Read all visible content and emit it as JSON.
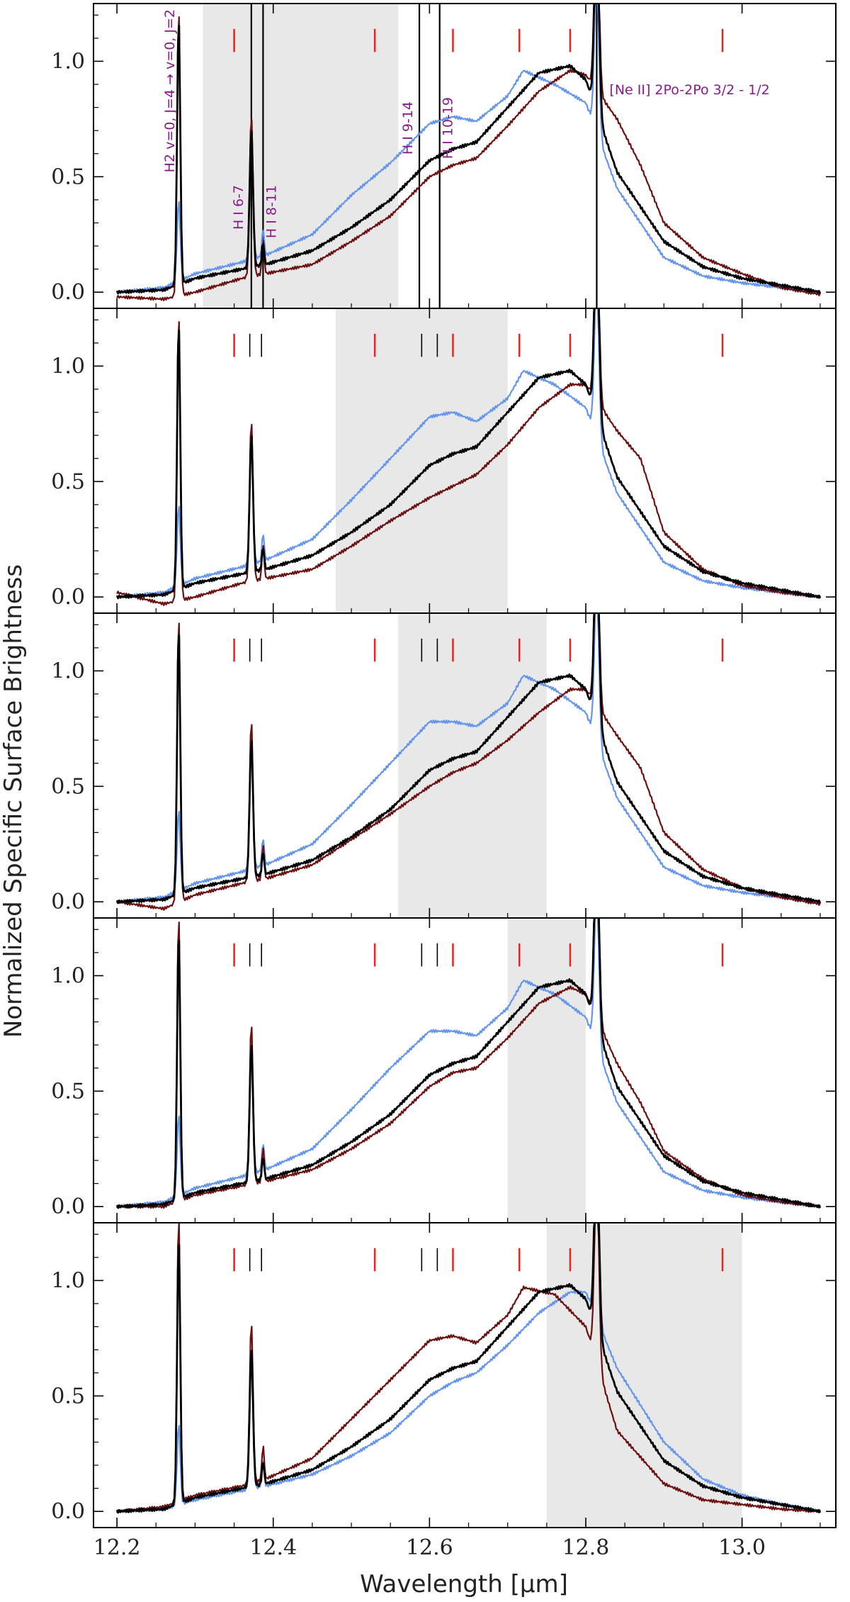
{
  "chart_data": {
    "type": "line",
    "xlabel": "Wavelength [μm]",
    "ylabel": "Normalized Specific Surface Brightness",
    "xlim": [
      12.17,
      13.12
    ],
    "ylim": [
      -0.07,
      1.25
    ],
    "xticks": [
      12.2,
      12.4,
      12.6,
      12.8,
      13.0
    ],
    "xtick_labels": [
      "12.2",
      "12.4",
      "12.6",
      "12.8",
      "13.0"
    ],
    "yticks": [
      0.0,
      0.5,
      1.0
    ],
    "ytick_labels": [
      "0.0",
      "0.5",
      "1.0"
    ],
    "colors": {
      "black": "#000000",
      "blue": "#6495ED",
      "darkred": "#6B0F0F",
      "marker_red": "#E8231C",
      "annotation": "#8A1A8A",
      "shade": "#E8E8E8"
    },
    "series_names": [
      "black",
      "blue",
      "darkred"
    ],
    "red_markers": [
      12.35,
      12.53,
      12.63,
      12.715,
      12.78,
      12.975
    ],
    "black_markers": [
      12.37,
      12.385,
      12.59,
      12.61
    ],
    "annotations": [
      {
        "label": "H2 v=0, J=4 → v=0, J=2",
        "x": 12.279
      },
      {
        "label": "H I 6-7",
        "x": 12.372
      },
      {
        "label": "H I 8-11",
        "x": 12.387
      },
      {
        "label": "H I 9-14",
        "x": 12.587
      },
      {
        "label": "H I 10-19",
        "x": 12.613
      },
      {
        "label": "[Ne II] 2Po-2Po 3/2 - 1/2",
        "x": 12.814
      }
    ],
    "panels": [
      {
        "shade": [
          12.31,
          12.56
        ],
        "series": [
          {
            "name": "black",
            "x": [
              12.2,
              12.26,
              12.3,
              12.36,
              12.39,
              12.45,
              12.5,
              12.55,
              12.6,
              12.63,
              12.66,
              12.7,
              12.74,
              12.78,
              12.8,
              12.84,
              12.9,
              12.95,
              13.0,
              13.05,
              13.1
            ],
            "y": [
              0.0,
              0.01,
              0.06,
              0.1,
              0.12,
              0.18,
              0.28,
              0.4,
              0.57,
              0.62,
              0.65,
              0.8,
              0.95,
              0.98,
              0.92,
              0.52,
              0.22,
              0.11,
              0.06,
              0.03,
              0.0
            ]
          },
          {
            "name": "blue",
            "x": [
              12.2,
              12.26,
              12.3,
              12.36,
              12.39,
              12.45,
              12.5,
              12.55,
              12.6,
              12.63,
              12.66,
              12.7,
              12.72,
              12.76,
              12.8,
              12.84,
              12.9,
              12.95,
              13.0,
              13.05,
              13.1
            ],
            "y": [
              0.0,
              0.02,
              0.08,
              0.13,
              0.16,
              0.25,
              0.42,
              0.56,
              0.73,
              0.76,
              0.74,
              0.85,
              0.96,
              0.9,
              0.82,
              0.45,
              0.15,
              0.07,
              0.04,
              0.02,
              0.0
            ]
          },
          {
            "name": "darkred",
            "x": [
              12.2,
              12.26,
              12.3,
              12.36,
              12.39,
              12.45,
              12.5,
              12.55,
              12.6,
              12.63,
              12.66,
              12.7,
              12.74,
              12.78,
              12.8,
              12.84,
              12.87,
              12.9,
              12.95,
              13.0,
              13.05,
              13.1
            ],
            "y": [
              -0.02,
              -0.03,
              0.0,
              0.06,
              0.08,
              0.12,
              0.22,
              0.33,
              0.5,
              0.55,
              0.58,
              0.72,
              0.87,
              0.96,
              0.94,
              0.75,
              0.55,
              0.3,
              0.15,
              0.08,
              0.02,
              -0.01
            ]
          }
        ]
      },
      {
        "shade": [
          12.48,
          12.7
        ],
        "series": [
          {
            "name": "black",
            "x": [
              12.2,
              12.26,
              12.3,
              12.36,
              12.39,
              12.45,
              12.5,
              12.55,
              12.6,
              12.63,
              12.66,
              12.7,
              12.74,
              12.78,
              12.8,
              12.84,
              12.9,
              12.95,
              13.0,
              13.05,
              13.1
            ],
            "y": [
              0.0,
              0.01,
              0.06,
              0.1,
              0.12,
              0.18,
              0.28,
              0.4,
              0.57,
              0.62,
              0.65,
              0.8,
              0.95,
              0.98,
              0.92,
              0.52,
              0.22,
              0.11,
              0.06,
              0.03,
              0.0
            ]
          },
          {
            "name": "blue",
            "x": [
              12.2,
              12.26,
              12.3,
              12.36,
              12.39,
              12.45,
              12.5,
              12.55,
              12.6,
              12.63,
              12.66,
              12.7,
              12.72,
              12.76,
              12.8,
              12.84,
              12.9,
              12.95,
              13.0,
              13.05,
              13.1
            ],
            "y": [
              0.0,
              0.02,
              0.08,
              0.13,
              0.16,
              0.25,
              0.42,
              0.6,
              0.78,
              0.8,
              0.76,
              0.86,
              0.98,
              0.92,
              0.82,
              0.45,
              0.15,
              0.07,
              0.04,
              0.02,
              0.0
            ]
          },
          {
            "name": "darkred",
            "x": [
              12.2,
              12.26,
              12.3,
              12.36,
              12.39,
              12.45,
              12.5,
              12.55,
              12.6,
              12.63,
              12.66,
              12.7,
              12.74,
              12.78,
              12.8,
              12.84,
              12.87,
              12.9,
              12.95,
              13.0,
              13.05,
              13.1
            ],
            "y": [
              0.02,
              -0.03,
              0.0,
              0.06,
              0.08,
              0.12,
              0.22,
              0.33,
              0.43,
              0.48,
              0.53,
              0.66,
              0.82,
              0.92,
              0.92,
              0.72,
              0.6,
              0.28,
              0.12,
              0.05,
              0.02,
              0.0
            ]
          }
        ]
      },
      {
        "shade": [
          12.56,
          12.75
        ],
        "series": [
          {
            "name": "black",
            "x": [
              12.2,
              12.26,
              12.3,
              12.36,
              12.39,
              12.45,
              12.5,
              12.55,
              12.6,
              12.63,
              12.66,
              12.7,
              12.74,
              12.78,
              12.8,
              12.84,
              12.9,
              12.95,
              13.0,
              13.05,
              13.1
            ],
            "y": [
              0.0,
              0.01,
              0.06,
              0.1,
              0.12,
              0.18,
              0.28,
              0.4,
              0.57,
              0.62,
              0.65,
              0.8,
              0.95,
              0.98,
              0.92,
              0.52,
              0.22,
              0.11,
              0.06,
              0.03,
              0.0
            ]
          },
          {
            "name": "blue",
            "x": [
              12.2,
              12.26,
              12.3,
              12.36,
              12.39,
              12.45,
              12.5,
              12.55,
              12.6,
              12.63,
              12.66,
              12.7,
              12.72,
              12.76,
              12.8,
              12.84,
              12.9,
              12.95,
              13.0,
              13.05,
              13.1
            ],
            "y": [
              0.0,
              0.02,
              0.08,
              0.13,
              0.16,
              0.25,
              0.42,
              0.6,
              0.78,
              0.78,
              0.76,
              0.86,
              0.98,
              0.92,
              0.82,
              0.45,
              0.15,
              0.07,
              0.04,
              0.02,
              0.0
            ]
          },
          {
            "name": "darkred",
            "x": [
              12.2,
              12.26,
              12.3,
              12.36,
              12.39,
              12.45,
              12.5,
              12.55,
              12.6,
              12.63,
              12.66,
              12.7,
              12.74,
              12.78,
              12.8,
              12.84,
              12.87,
              12.9,
              12.95,
              13.0,
              13.05,
              13.1
            ],
            "y": [
              0.0,
              -0.03,
              0.03,
              0.08,
              0.1,
              0.16,
              0.27,
              0.38,
              0.5,
              0.56,
              0.6,
              0.7,
              0.82,
              0.92,
              0.92,
              0.72,
              0.58,
              0.3,
              0.14,
              0.06,
              0.02,
              -0.01
            ]
          }
        ]
      },
      {
        "shade": [
          12.7,
          12.8
        ],
        "series": [
          {
            "name": "black",
            "x": [
              12.2,
              12.26,
              12.3,
              12.36,
              12.39,
              12.45,
              12.5,
              12.55,
              12.6,
              12.63,
              12.66,
              12.7,
              12.74,
              12.78,
              12.8,
              12.84,
              12.9,
              12.95,
              13.0,
              13.05,
              13.1
            ],
            "y": [
              0.0,
              0.01,
              0.06,
              0.1,
              0.12,
              0.18,
              0.28,
              0.4,
              0.57,
              0.62,
              0.65,
              0.8,
              0.95,
              0.98,
              0.92,
              0.52,
              0.22,
              0.11,
              0.06,
              0.03,
              0.0
            ]
          },
          {
            "name": "blue",
            "x": [
              12.2,
              12.26,
              12.3,
              12.36,
              12.39,
              12.45,
              12.5,
              12.55,
              12.6,
              12.63,
              12.66,
              12.7,
              12.72,
              12.76,
              12.8,
              12.84,
              12.9,
              12.95,
              13.0,
              13.05,
              13.1
            ],
            "y": [
              0.0,
              0.02,
              0.08,
              0.13,
              0.16,
              0.25,
              0.42,
              0.6,
              0.76,
              0.76,
              0.74,
              0.86,
              0.98,
              0.92,
              0.82,
              0.45,
              0.15,
              0.07,
              0.04,
              0.02,
              0.0
            ]
          },
          {
            "name": "darkred",
            "x": [
              12.2,
              12.26,
              12.3,
              12.36,
              12.39,
              12.45,
              12.5,
              12.55,
              12.6,
              12.63,
              12.66,
              12.7,
              12.74,
              12.78,
              12.8,
              12.84,
              12.87,
              12.9,
              12.95,
              13.0,
              13.05,
              13.1
            ],
            "y": [
              0.0,
              0.0,
              0.05,
              0.09,
              0.11,
              0.16,
              0.25,
              0.36,
              0.52,
              0.58,
              0.6,
              0.73,
              0.88,
              0.95,
              0.92,
              0.62,
              0.45,
              0.24,
              0.12,
              0.05,
              0.02,
              0.0
            ]
          }
        ]
      },
      {
        "shade": [
          12.75,
          13.0
        ],
        "series": [
          {
            "name": "black",
            "x": [
              12.2,
              12.26,
              12.3,
              12.36,
              12.39,
              12.45,
              12.5,
              12.55,
              12.6,
              12.63,
              12.66,
              12.7,
              12.74,
              12.78,
              12.8,
              12.84,
              12.9,
              12.95,
              13.0,
              13.05,
              13.1
            ],
            "y": [
              0.0,
              0.01,
              0.06,
              0.1,
              0.12,
              0.18,
              0.28,
              0.4,
              0.57,
              0.62,
              0.65,
              0.8,
              0.95,
              0.98,
              0.92,
              0.52,
              0.22,
              0.11,
              0.06,
              0.03,
              0.0
            ]
          },
          {
            "name": "blue",
            "x": [
              12.2,
              12.26,
              12.3,
              12.36,
              12.39,
              12.45,
              12.5,
              12.55,
              12.6,
              12.63,
              12.66,
              12.7,
              12.74,
              12.78,
              12.8,
              12.84,
              12.9,
              12.95,
              13.0,
              13.05,
              13.1
            ],
            "y": [
              0.0,
              0.01,
              0.05,
              0.09,
              0.11,
              0.16,
              0.24,
              0.34,
              0.5,
              0.56,
              0.6,
              0.72,
              0.86,
              0.95,
              0.95,
              0.62,
              0.3,
              0.14,
              0.07,
              0.03,
              0.0
            ]
          },
          {
            "name": "darkred",
            "x": [
              12.2,
              12.26,
              12.3,
              12.36,
              12.39,
              12.45,
              12.5,
              12.55,
              12.6,
              12.63,
              12.66,
              12.7,
              12.72,
              12.76,
              12.8,
              12.84,
              12.9,
              12.95,
              13.0,
              13.05,
              13.1
            ],
            "y": [
              0.0,
              0.02,
              0.07,
              0.11,
              0.14,
              0.23,
              0.4,
              0.57,
              0.74,
              0.76,
              0.73,
              0.85,
              0.97,
              0.94,
              0.8,
              0.35,
              0.12,
              0.05,
              0.03,
              0.01,
              0.0
            ]
          }
        ]
      }
    ]
  }
}
